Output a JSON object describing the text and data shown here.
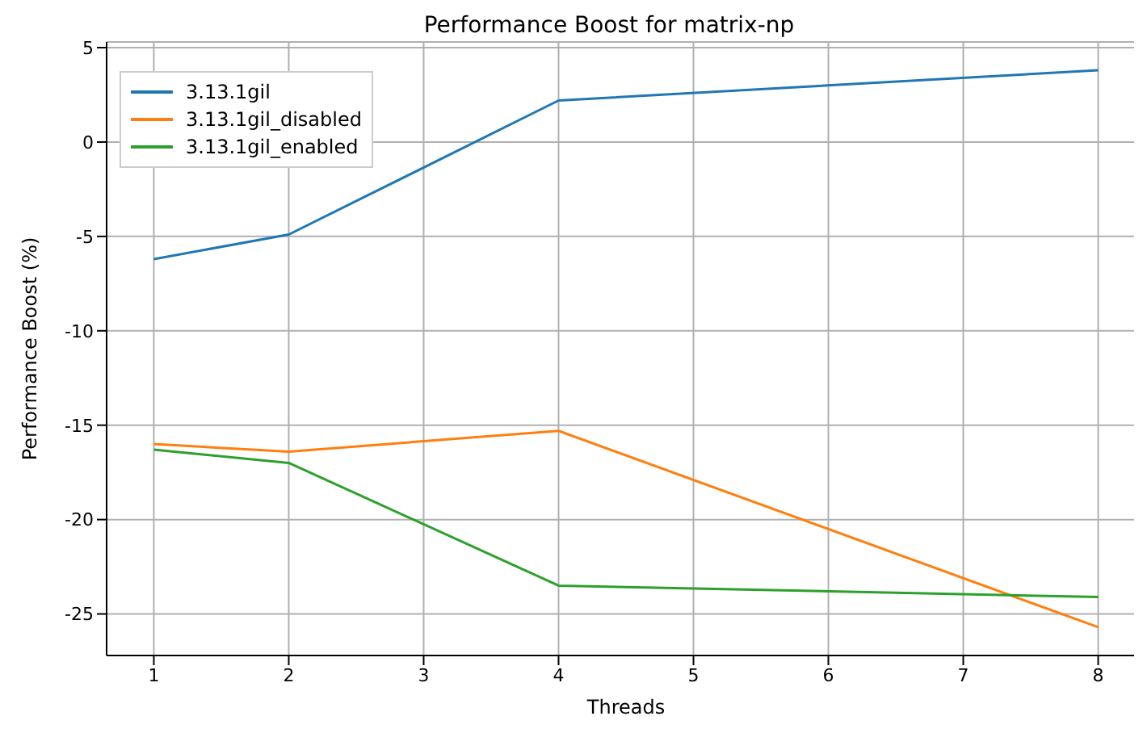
{
  "chart_data": {
    "type": "line",
    "title": "Performance Boost for matrix-np",
    "xlabel": "Threads",
    "ylabel": "Performance Boost (%)",
    "x": [
      1,
      2,
      4,
      8
    ],
    "series": [
      {
        "name": "3.13.1gil",
        "color": "#1f77b4",
        "values": [
          -6.2,
          -4.9,
          2.2,
          3.8
        ]
      },
      {
        "name": "3.13.1gil_disabled",
        "color": "#ff7f0e",
        "values": [
          -16.0,
          -16.4,
          -15.3,
          -25.7
        ]
      },
      {
        "name": "3.13.1gil_enabled",
        "color": "#2ca02c",
        "values": [
          -16.3,
          -17.0,
          -23.5,
          -24.1
        ]
      }
    ],
    "xlim": [
      0.65,
      8.35
    ],
    "xticks": [
      1,
      2,
      3,
      4,
      5,
      6,
      7,
      8
    ],
    "ylim": [
      -27.2,
      5.3
    ],
    "yticks": [
      -25,
      -20,
      -15,
      -10,
      -5,
      0,
      5
    ],
    "grid": true,
    "legend": "top left",
    "marker": "none",
    "line_style": "solid"
  }
}
